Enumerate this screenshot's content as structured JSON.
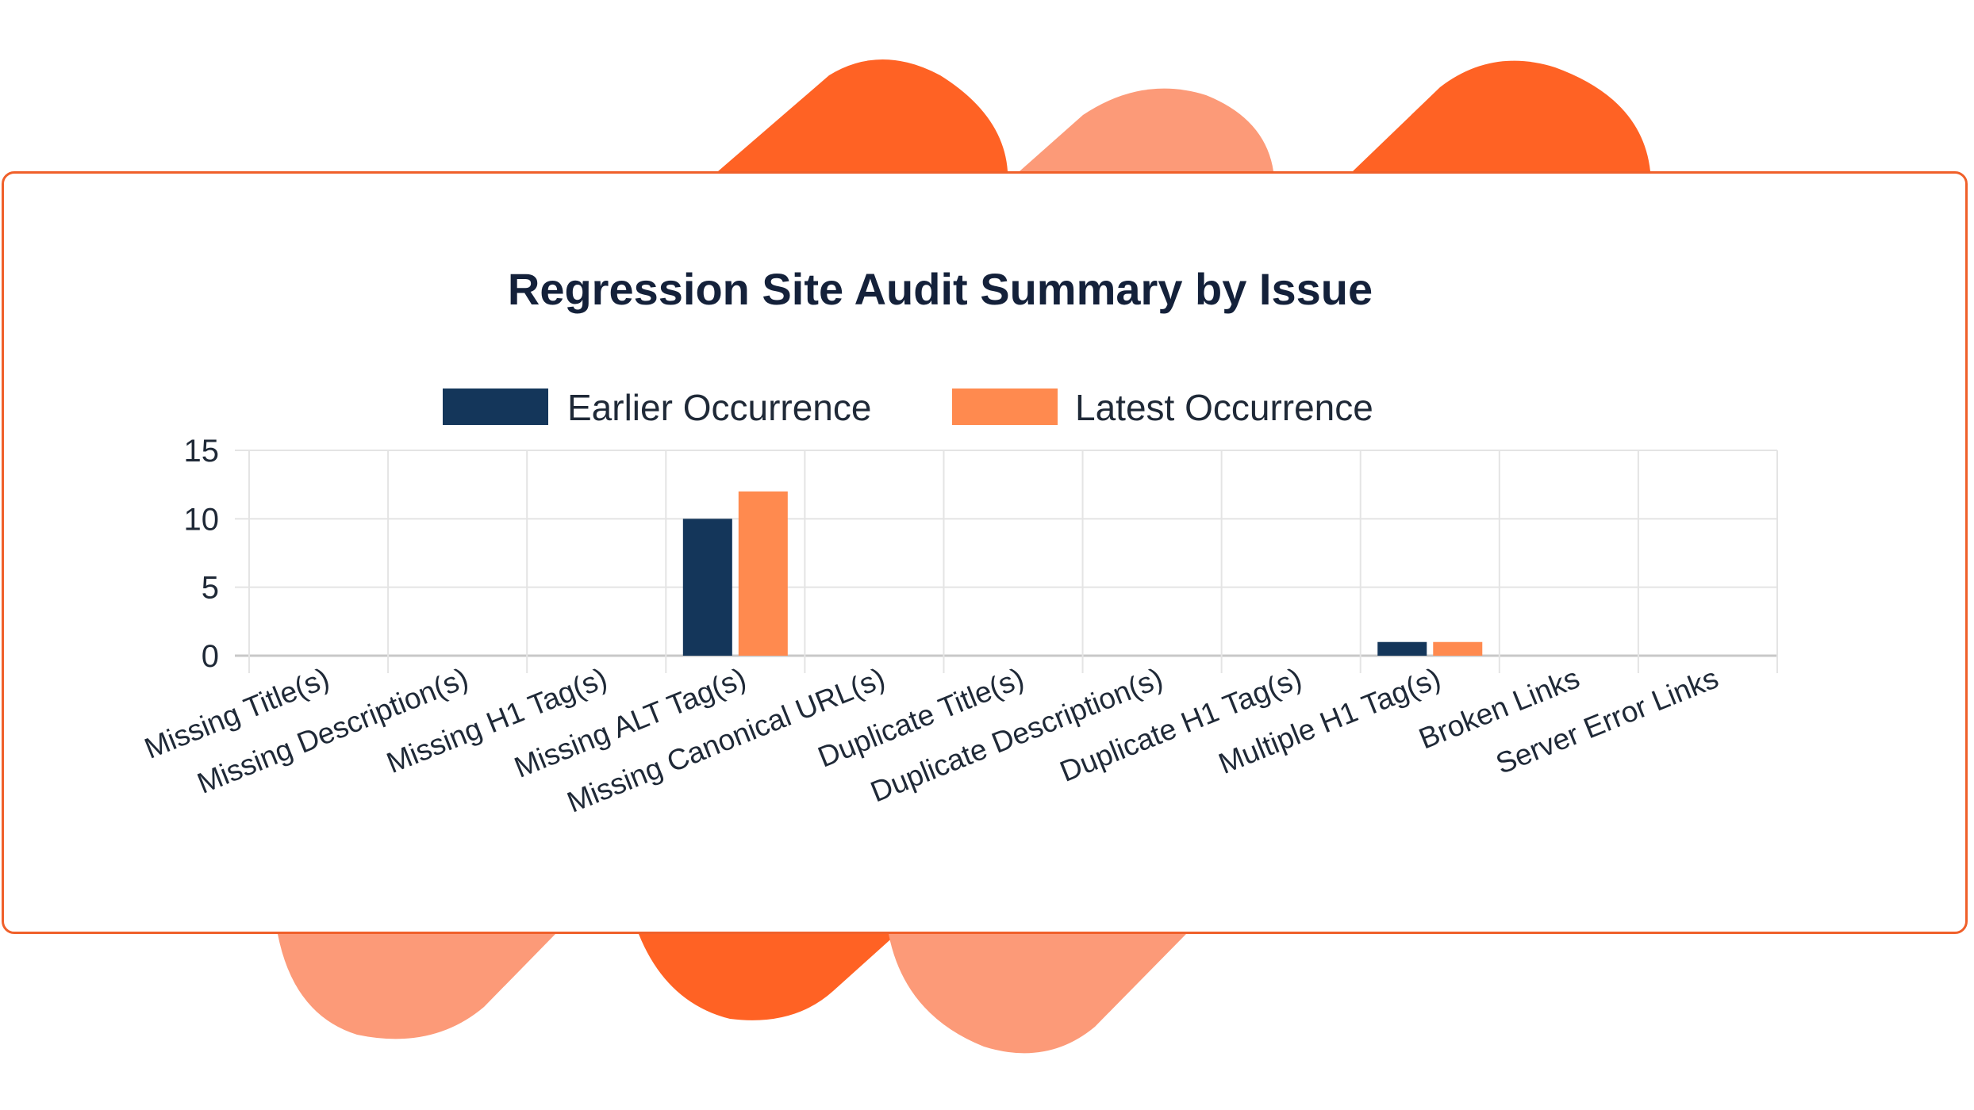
{
  "colors": {
    "earlier": "#14365a",
    "latest": "#ff8a4f",
    "accent_dark": "#ff6224",
    "accent_light": "#fc9a78",
    "card_border": "#f0602a",
    "grid": "#e4e4e4"
  },
  "chart_data": {
    "type": "bar",
    "title": "Regression Site Audit Summary by Issue",
    "categories": [
      "Missing Title(s)",
      "Missing Description(s)",
      "Missing H1 Tag(s)",
      "Missing ALT Tag(s)",
      "Missing Canonical URL(s)",
      "Duplicate Title(s)",
      "Duplicate Description(s)",
      "Duplicate H1 Tag(s)",
      "Multiple H1 Tag(s)",
      "Broken Links",
      "Server Error Links"
    ],
    "series": [
      {
        "name": "Earlier Occurrence",
        "values": [
          0,
          0,
          0,
          10,
          0,
          0,
          0,
          0,
          1,
          0,
          0
        ]
      },
      {
        "name": "Latest Occurrence",
        "values": [
          0,
          0,
          0,
          12,
          0,
          0,
          0,
          0,
          1,
          0,
          0
        ]
      }
    ],
    "yticks": [
      "0",
      "5",
      "10",
      "15"
    ],
    "ylim": [
      0,
      15
    ],
    "xlabel": "",
    "ylabel": "",
    "grid": true,
    "legend_position": "top"
  }
}
